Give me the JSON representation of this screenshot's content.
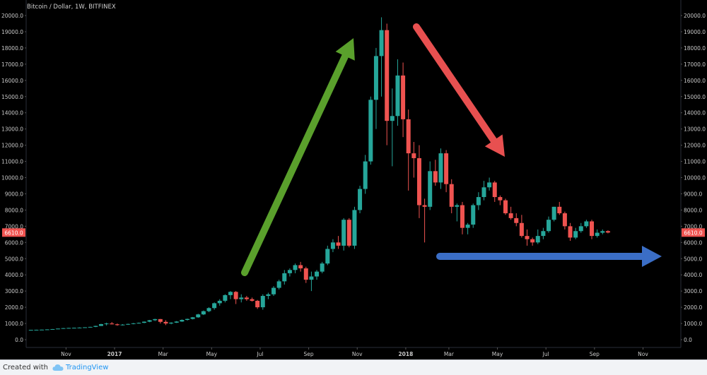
{
  "chart_data": {
    "type": "candlestick",
    "title": "Bitcoin / Dollar, 1W, BITFINEX",
    "ylim": [
      0,
      20000
    ],
    "y_ticks": [
      0,
      1000,
      2000,
      3000,
      4000,
      5000,
      6000,
      7000,
      8000,
      9000,
      10000,
      11000,
      12000,
      13000,
      14000,
      15000,
      16000,
      17000,
      18000,
      19000,
      20000
    ],
    "y_tick_labels": [
      "0.0",
      "1000.0",
      "2000.0",
      "3000.0",
      "4000.0",
      "5000.0",
      "6000.0",
      "7000.0",
      "8000.0",
      "9000.0",
      "10000.0",
      "11000.0",
      "12000.0",
      "13000.0",
      "14000.0",
      "15000.0",
      "16000.0",
      "17000.0",
      "18000.0",
      "19000.0",
      "20000.0"
    ],
    "x_labels": [
      {
        "label": "Nov",
        "week": 7
      },
      {
        "label": "2017",
        "week": 16
      },
      {
        "label": "Mar",
        "week": 25
      },
      {
        "label": "May",
        "week": 34
      },
      {
        "label": "Jul",
        "week": 43
      },
      {
        "label": "Sep",
        "week": 52
      },
      {
        "label": "Nov",
        "week": 61
      },
      {
        "label": "2018",
        "week": 70
      },
      {
        "label": "Mar",
        "week": 78
      },
      {
        "label": "May",
        "week": 87
      },
      {
        "label": "Jul",
        "week": 96
      },
      {
        "label": "Sep",
        "week": 105
      },
      {
        "label": "Nov",
        "week": 114
      }
    ],
    "total_weeks": 118,
    "last_price": 6610,
    "last_price_label": "6610.0",
    "up_color": "#26a69a",
    "down_color": "#ef5350",
    "candles": [
      [
        600,
        610,
        590,
        605
      ],
      [
        605,
        615,
        598,
        612
      ],
      [
        612,
        625,
        605,
        620
      ],
      [
        620,
        640,
        612,
        635
      ],
      [
        635,
        660,
        628,
        655
      ],
      [
        655,
        690,
        645,
        685
      ],
      [
        685,
        720,
        670,
        712
      ],
      [
        712,
        735,
        695,
        725
      ],
      [
        725,
        745,
        705,
        735
      ],
      [
        735,
        760,
        715,
        748
      ],
      [
        748,
        770,
        735,
        765
      ],
      [
        765,
        795,
        750,
        790
      ],
      [
        790,
        860,
        775,
        850
      ],
      [
        850,
        980,
        840,
        960
      ],
      [
        960,
        1050,
        880,
        1000
      ],
      [
        1000,
        1090,
        940,
        950
      ],
      [
        950,
        1000,
        860,
        900
      ],
      [
        900,
        960,
        880,
        930
      ],
      [
        930,
        990,
        910,
        970
      ],
      [
        970,
        1030,
        950,
        1010
      ],
      [
        1010,
        1060,
        990,
        1040
      ],
      [
        1040,
        1130,
        1020,
        1110
      ],
      [
        1110,
        1220,
        1080,
        1200
      ],
      [
        1200,
        1290,
        1150,
        1270
      ],
      [
        1270,
        1280,
        1000,
        1100
      ],
      [
        1100,
        1200,
        900,
        1000
      ],
      [
        1000,
        1080,
        950,
        1050
      ],
      [
        1050,
        1150,
        1030,
        1120
      ],
      [
        1120,
        1250,
        1100,
        1220
      ],
      [
        1220,
        1300,
        1180,
        1280
      ],
      [
        1280,
        1400,
        1250,
        1380
      ],
      [
        1380,
        1600,
        1350,
        1560
      ],
      [
        1560,
        1800,
        1520,
        1760
      ],
      [
        1760,
        2000,
        1700,
        1950
      ],
      [
        1950,
        2300,
        1850,
        2250
      ],
      [
        2250,
        2500,
        2100,
        2400
      ],
      [
        2400,
        2800,
        2300,
        2750
      ],
      [
        2750,
        3000,
        2500,
        2950
      ],
      [
        2950,
        3000,
        2200,
        2500
      ],
      [
        2500,
        2800,
        2300,
        2600
      ],
      [
        2600,
        2700,
        2400,
        2500
      ],
      [
        2500,
        2600,
        2350,
        2400
      ],
      [
        2400,
        2450,
        1900,
        2000
      ],
      [
        2000,
        2800,
        1850,
        2700
      ],
      [
        2700,
        2900,
        2500,
        2800
      ],
      [
        2800,
        3300,
        2700,
        3200
      ],
      [
        3200,
        3700,
        3100,
        3600
      ],
      [
        3600,
        4300,
        3400,
        4100
      ],
      [
        4100,
        4400,
        3900,
        4300
      ],
      [
        4300,
        4700,
        4100,
        4600
      ],
      [
        4600,
        4800,
        4200,
        4400
      ],
      [
        4400,
        4500,
        3500,
        3700
      ],
      [
        3700,
        4200,
        3000,
        3900
      ],
      [
        3900,
        4300,
        3700,
        4200
      ],
      [
        4200,
        4800,
        4100,
        4700
      ],
      [
        4700,
        5800,
        4600,
        5600
      ],
      [
        5600,
        6200,
        5400,
        6000
      ],
      [
        6000,
        6400,
        5600,
        5800
      ],
      [
        5800,
        7500,
        5500,
        7400
      ],
      [
        7400,
        7500,
        5700,
        5800
      ],
      [
        5800,
        8200,
        5600,
        8000
      ],
      [
        8000,
        9500,
        7800,
        9300
      ],
      [
        9300,
        11400,
        9000,
        11000
      ],
      [
        11000,
        15000,
        10800,
        14800
      ],
      [
        14800,
        18000,
        13000,
        17500
      ],
      [
        17500,
        19891,
        15000,
        19100
      ],
      [
        19100,
        19500,
        12000,
        13500
      ],
      [
        13500,
        15500,
        10700,
        13800
      ],
      [
        13800,
        17300,
        13200,
        16300
      ],
      [
        16300,
        17100,
        12500,
        13600
      ],
      [
        13600,
        14200,
        9200,
        11500
      ],
      [
        11500,
        12200,
        10000,
        11200
      ],
      [
        11200,
        12000,
        7500,
        8300
      ],
      [
        8300,
        8700,
        6000,
        8200
      ],
      [
        8200,
        11000,
        8000,
        10400
      ],
      [
        10400,
        11100,
        9500,
        9700
      ],
      [
        9700,
        11800,
        9300,
        11500
      ],
      [
        11500,
        11700,
        9100,
        9600
      ],
      [
        9600,
        9900,
        7800,
        8200
      ],
      [
        8200,
        8400,
        7300,
        8300
      ],
      [
        8300,
        8500,
        6500,
        6900
      ],
      [
        6900,
        7200,
        6500,
        7100
      ],
      [
        7100,
        8400,
        6900,
        8300
      ],
      [
        8300,
        9100,
        8000,
        8800
      ],
      [
        8800,
        9800,
        8600,
        9400
      ],
      [
        9400,
        10000,
        9200,
        9700
      ],
      [
        9700,
        9800,
        8500,
        8800
      ],
      [
        8800,
        8900,
        8300,
        8600
      ],
      [
        8600,
        8700,
        7700,
        7800
      ],
      [
        7800,
        8200,
        7400,
        7500
      ],
      [
        7500,
        7800,
        7000,
        7200
      ],
      [
        7200,
        7700,
        6300,
        6400
      ],
      [
        6400,
        6800,
        5800,
        6200
      ],
      [
        6200,
        6300,
        5800,
        6000
      ],
      [
        6000,
        6800,
        5900,
        6400
      ],
      [
        6400,
        6900,
        6200,
        6700
      ],
      [
        6700,
        7600,
        6600,
        7400
      ],
      [
        7400,
        8200,
        7300,
        8200
      ],
      [
        8200,
        8500,
        7700,
        7800
      ],
      [
        7800,
        7900,
        6800,
        7000
      ],
      [
        7000,
        7200,
        6100,
        6300
      ],
      [
        6300,
        6900,
        6200,
        6700
      ],
      [
        6700,
        7200,
        6600,
        7000
      ],
      [
        7000,
        7400,
        6900,
        7300
      ],
      [
        7300,
        7400,
        6200,
        6400
      ],
      [
        6400,
        6800,
        6300,
        6600
      ],
      [
        6600,
        6800,
        6500,
        6700
      ],
      [
        6700,
        6750,
        6560,
        6610
      ]
    ]
  }
}
